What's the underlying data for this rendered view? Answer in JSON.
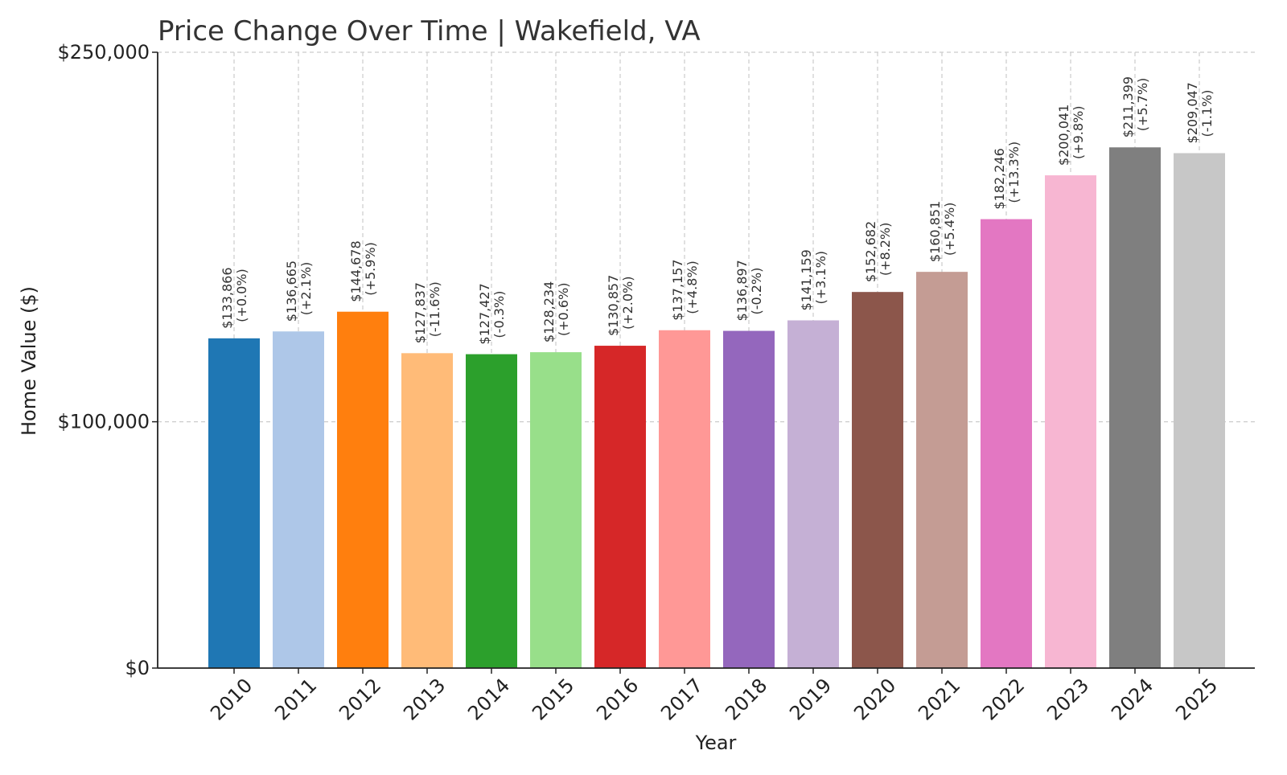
{
  "chart_data": {
    "type": "bar",
    "title": "Price Change Over Time | Wakefield, VA",
    "xlabel": "Year",
    "ylabel": "Home Value ($)",
    "ylim": [
      0,
      250000
    ],
    "yticks": [
      {
        "value": 0,
        "label": "$0"
      },
      {
        "value": 100000,
        "label": "$100,000"
      },
      {
        "value": 250000,
        "label": "$250,000"
      }
    ],
    "grid": true,
    "categories": [
      "2010",
      "2011",
      "2012",
      "2013",
      "2014",
      "2015",
      "2016",
      "2017",
      "2018",
      "2019",
      "2020",
      "2021",
      "2022",
      "2023",
      "2024",
      "2025"
    ],
    "values": [
      133866,
      136665,
      144678,
      127837,
      127427,
      128234,
      130857,
      137157,
      136897,
      141159,
      152682,
      160851,
      182246,
      200041,
      211399,
      209047
    ],
    "value_labels": [
      "$133,866",
      "$136,665",
      "$144,678",
      "$127,837",
      "$127,427",
      "$128,234",
      "$130,857",
      "$137,157",
      "$136,897",
      "$141,159",
      "$152,682",
      "$160,851",
      "$182,246",
      "$200,041",
      "$211,399",
      "$209,047"
    ],
    "change_labels": [
      "(+0.0%)",
      "(+2.1%)",
      "(+5.9%)",
      "(-11.6%)",
      "(-0.3%)",
      "(+0.6%)",
      "(+2.0%)",
      "(+4.8%)",
      "(-0.2%)",
      "(+3.1%)",
      "(+8.2%)",
      "(+5.4%)",
      "(+13.3%)",
      "(+9.8%)",
      "(+5.7%)",
      "(-1.1%)"
    ],
    "colors": [
      "#1f77b4",
      "#aec7e8",
      "#ff7f0e",
      "#ffbb78",
      "#2ca02c",
      "#98df8a",
      "#d62728",
      "#ff9896",
      "#9467bd",
      "#c5b0d5",
      "#8c564b",
      "#c49c94",
      "#e377c2",
      "#f7b6d2",
      "#7f7f7f",
      "#c7c7c7"
    ]
  }
}
